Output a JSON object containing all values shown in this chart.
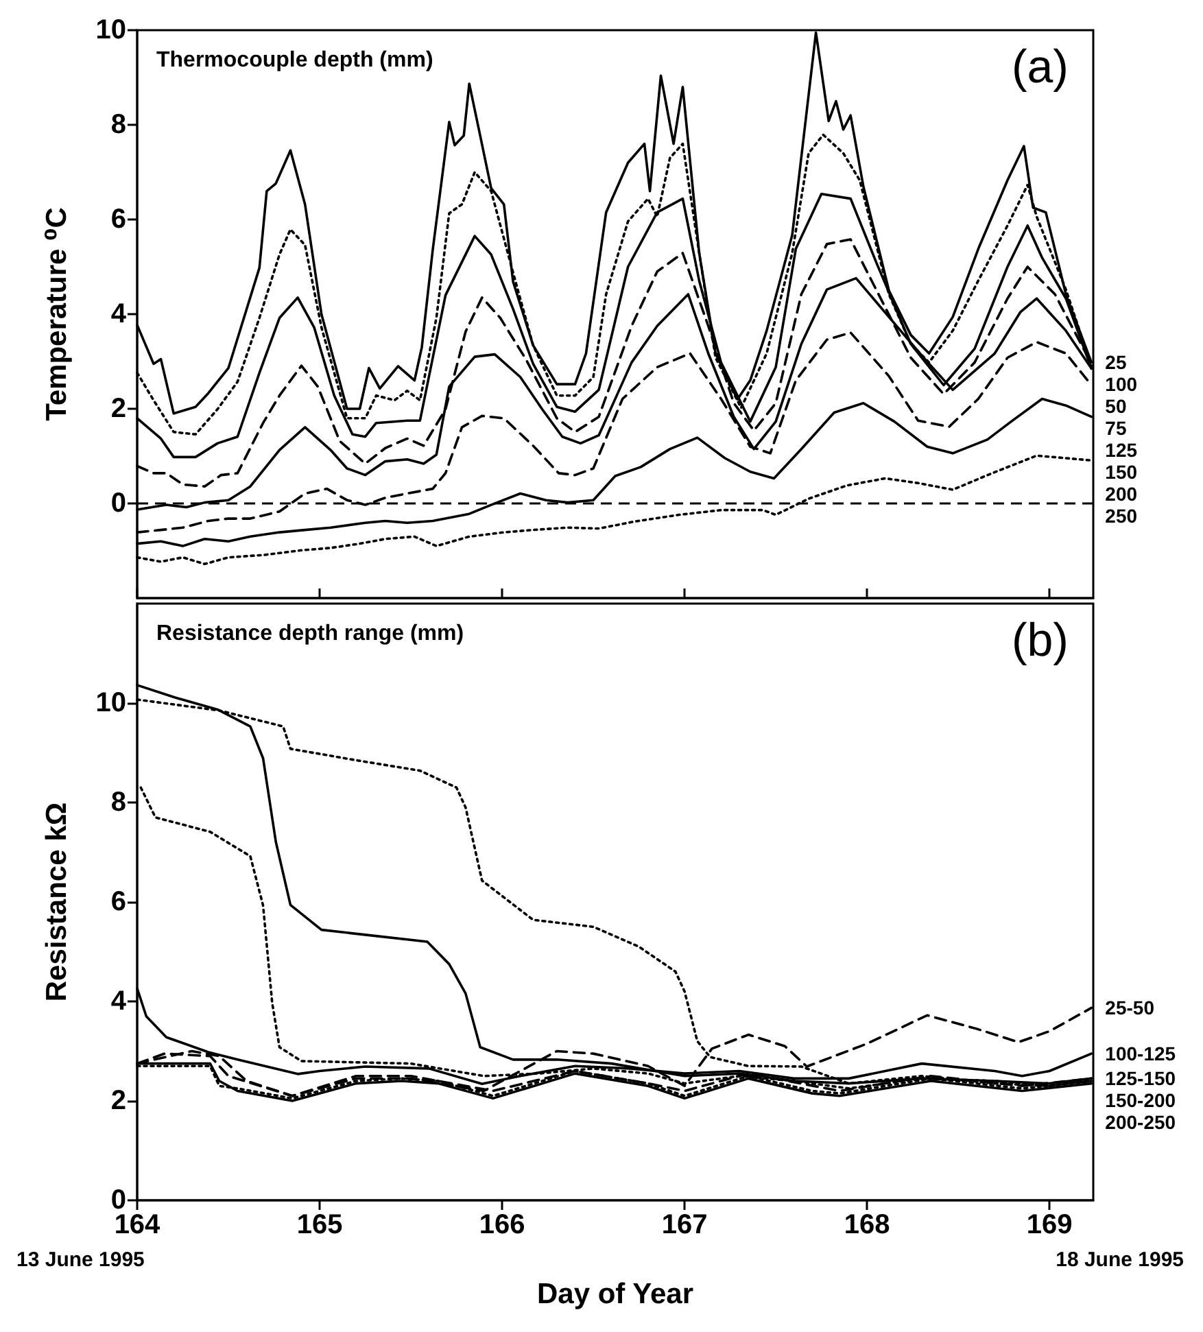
{
  "chart_data": [
    {
      "type": "line",
      "ylabel": "Temperature ⁰C",
      "xlim": [
        164,
        169.24
      ],
      "xticks": [
        164,
        165,
        166,
        167,
        168,
        169
      ],
      "ylim": [
        -2,
        10
      ],
      "yticks": [
        0,
        2,
        4,
        6,
        8,
        10
      ],
      "tick_labels": "y",
      "annotations": [
        "Thermocouple depth (mm)",
        "(a)"
      ],
      "ref_lines": [
        {
          "axis": "y",
          "value": 0,
          "color": "#000000",
          "line_style": "dashed"
        }
      ],
      "series": [
        {
          "name": "25",
          "color": "#000000",
          "line_style": "solid",
          "x": [
            164,
            164.09,
            164.13,
            164.2,
            164.32,
            164.39,
            164.5,
            164.67,
            164.71,
            164.76,
            164.84,
            164.92,
            165.01,
            165.15,
            165.22,
            165.27,
            165.33,
            165.43,
            165.52,
            165.56,
            165.62,
            165.71,
            165.74,
            165.79,
            165.82,
            165.88,
            165.94,
            166.01,
            166.06,
            166.17,
            166.3,
            166.4,
            166.46,
            166.57,
            166.69,
            166.78,
            166.81,
            166.87,
            166.94,
            166.99,
            167.08,
            167.17,
            167.29,
            167.36,
            167.45,
            167.59,
            167.72,
            167.79,
            167.83,
            167.87,
            167.91,
            167.98,
            168.12,
            168.24,
            168.34,
            168.47,
            168.61,
            168.77,
            168.86,
            168.91,
            168.98,
            169.09,
            169.23
          ],
          "values": [
            3.77,
            2.95,
            3.05,
            1.9,
            2.04,
            2.33,
            2.86,
            4.98,
            6.6,
            6.76,
            7.46,
            6.32,
            4.0,
            2.0,
            2.0,
            2.86,
            2.43,
            2.9,
            2.6,
            3.3,
            5.36,
            8.06,
            7.57,
            7.77,
            8.87,
            7.77,
            6.66,
            6.32,
            4.69,
            3.34,
            2.52,
            2.52,
            3.17,
            6.15,
            7.2,
            7.6,
            6.6,
            9.04,
            7.6,
            8.8,
            5.3,
            3.17,
            2.2,
            2.6,
            3.65,
            5.67,
            9.95,
            8.08,
            8.5,
            7.9,
            8.2,
            6.7,
            4.5,
            3.56,
            3.17,
            3.94,
            5.38,
            6.83,
            7.55,
            6.25,
            6.15,
            4.42,
            2.98
          ]
        },
        {
          "name": "50",
          "color": "#000000",
          "line_style": "dotted",
          "x": [
            164,
            164.09,
            164.2,
            164.32,
            164.44,
            164.55,
            164.67,
            164.78,
            164.84,
            164.92,
            165.01,
            165.15,
            165.25,
            165.31,
            165.41,
            165.48,
            165.55,
            165.64,
            165.71,
            165.78,
            165.85,
            165.94,
            166.06,
            166.17,
            166.3,
            166.4,
            166.5,
            166.57,
            166.69,
            166.8,
            166.85,
            166.92,
            166.99,
            167.08,
            167.17,
            167.31,
            167.45,
            167.59,
            167.68,
            167.76,
            167.87,
            167.96,
            168.12,
            168.24,
            168.34,
            168.47,
            168.61,
            168.77,
            168.88,
            168.93,
            169.09,
            169.23
          ],
          "values": [
            2.76,
            2.18,
            1.51,
            1.46,
            1.99,
            2.57,
            3.92,
            5.26,
            5.79,
            5.46,
            3.72,
            1.8,
            1.8,
            2.28,
            2.18,
            2.38,
            2.18,
            3.92,
            6.13,
            6.32,
            7.0,
            6.6,
            4.88,
            3.34,
            2.28,
            2.28,
            2.67,
            4.42,
            5.96,
            6.44,
            6.06,
            7.3,
            7.6,
            5.3,
            3.08,
            2.02,
            3.17,
            5.29,
            7.4,
            7.79,
            7.4,
            6.83,
            4.42,
            3.37,
            2.98,
            3.65,
            4.71,
            5.87,
            6.73,
            6.06,
            4.52,
            2.9
          ]
        },
        {
          "name": "75",
          "color": "#000000",
          "line_style": "solid",
          "x": [
            164,
            164.13,
            164.2,
            164.32,
            164.44,
            164.55,
            164.67,
            164.78,
            164.88,
            164.97,
            165.08,
            165.18,
            165.25,
            165.31,
            165.48,
            165.55,
            165.69,
            165.85,
            165.94,
            166.06,
            166.17,
            166.3,
            166.4,
            166.53,
            166.69,
            166.85,
            166.99,
            167.08,
            167.2,
            167.36,
            167.5,
            167.61,
            167.75,
            167.91,
            168.05,
            168.24,
            168.42,
            168.59,
            168.77,
            168.88,
            168.96,
            169.09,
            169.23
          ],
          "values": [
            1.8,
            1.37,
            0.98,
            0.98,
            1.27,
            1.41,
            2.76,
            3.92,
            4.35,
            3.72,
            2.28,
            1.46,
            1.41,
            1.7,
            1.75,
            1.75,
            4.4,
            5.65,
            5.26,
            4.11,
            2.95,
            2.04,
            1.94,
            2.4,
            5.0,
            6.15,
            6.44,
            4.71,
            2.98,
            1.73,
            2.88,
            5.38,
            6.54,
            6.44,
            5.1,
            3.37,
            2.5,
            3.27,
            5.0,
            5.87,
            5.19,
            4.33,
            2.85
          ]
        },
        {
          "name": "100",
          "color": "#000000",
          "line_style": "dashed",
          "x": [
            164,
            164.09,
            164.16,
            164.25,
            164.37,
            164.46,
            164.55,
            164.69,
            164.78,
            164.9,
            164.99,
            165.11,
            165.25,
            165.36,
            165.48,
            165.57,
            165.69,
            165.8,
            165.89,
            165.99,
            166.13,
            166.3,
            166.4,
            166.53,
            166.71,
            166.85,
            166.99,
            167.13,
            167.27,
            167.38,
            167.5,
            167.64,
            167.78,
            167.91,
            168.05,
            168.24,
            168.42,
            168.59,
            168.77,
            168.88,
            169.03,
            169.23
          ],
          "values": [
            0.79,
            0.64,
            0.64,
            0.4,
            0.36,
            0.6,
            0.64,
            1.7,
            2.28,
            2.91,
            2.47,
            1.32,
            0.84,
            1.17,
            1.37,
            1.22,
            1.99,
            3.63,
            4.35,
            3.92,
            3.05,
            1.8,
            1.51,
            1.83,
            3.75,
            4.9,
            5.29,
            3.75,
            2.12,
            1.54,
            2.12,
            4.42,
            5.48,
            5.58,
            4.52,
            3.08,
            2.31,
            2.98,
            4.33,
            5.0,
            4.42,
            2.95
          ]
        },
        {
          "name": "125",
          "color": "#000000",
          "line_style": "solid",
          "x": [
            164,
            164.16,
            164.27,
            164.37,
            164.5,
            164.62,
            164.78,
            164.92,
            165.06,
            165.15,
            165.25,
            165.36,
            165.48,
            165.57,
            165.64,
            165.71,
            165.85,
            165.96,
            166.1,
            166.22,
            166.33,
            166.43,
            166.53,
            166.71,
            166.85,
            167.02,
            167.13,
            167.27,
            167.38,
            167.5,
            167.64,
            167.78,
            167.94,
            168.12,
            168.31,
            168.47,
            168.7,
            168.84,
            168.93,
            169.09,
            169.23
          ],
          "values": [
            -0.13,
            -0.03,
            -0.08,
            0.02,
            0.07,
            0.36,
            1.13,
            1.61,
            1.13,
            0.74,
            0.6,
            0.89,
            0.93,
            0.84,
            1.03,
            2.47,
            3.1,
            3.15,
            2.67,
            1.99,
            1.41,
            1.27,
            1.44,
            2.98,
            3.75,
            4.42,
            3.17,
            1.83,
            1.15,
            1.73,
            3.37,
            4.52,
            4.76,
            3.94,
            3.08,
            2.4,
            3.17,
            4.04,
            4.33,
            3.65,
            2.85
          ]
        },
        {
          "name": "150",
          "color": "#000000",
          "line_style": "dashed",
          "x": [
            164,
            164.13,
            164.25,
            164.39,
            164.5,
            164.62,
            164.78,
            164.92,
            165.04,
            165.15,
            165.25,
            165.36,
            165.48,
            165.62,
            165.69,
            165.78,
            165.89,
            166.01,
            166.17,
            166.31,
            166.4,
            166.5,
            166.66,
            166.85,
            167.03,
            167.2,
            167.36,
            167.47,
            167.61,
            167.78,
            167.91,
            168.12,
            168.28,
            168.45,
            168.61,
            168.77,
            168.93,
            169.09,
            169.23
          ],
          "values": [
            -0.61,
            -0.56,
            -0.51,
            -0.37,
            -0.32,
            -0.32,
            -0.17,
            0.21,
            0.31,
            0.07,
            -0.03,
            0.12,
            0.21,
            0.31,
            0.64,
            1.61,
            1.85,
            1.8,
            1.22,
            0.64,
            0.6,
            0.74,
            2.21,
            2.88,
            3.17,
            2.21,
            1.2,
            1.06,
            2.6,
            3.46,
            3.61,
            2.69,
            1.75,
            1.62,
            2.21,
            3.08,
            3.41,
            3.17,
            2.5
          ]
        },
        {
          "name": "200",
          "color": "#000000",
          "line_style": "solid",
          "x": [
            164,
            164.13,
            164.25,
            164.37,
            164.5,
            164.62,
            164.78,
            164.92,
            165.06,
            165.25,
            165.36,
            165.48,
            165.62,
            165.82,
            165.94,
            166.1,
            166.24,
            166.36,
            166.5,
            166.62,
            166.76,
            166.92,
            167.07,
            167.22,
            167.36,
            167.49,
            167.64,
            167.82,
            167.98,
            168.15,
            168.33,
            168.47,
            168.66,
            168.79,
            168.96,
            169.09,
            169.23
          ],
          "values": [
            -0.85,
            -0.8,
            -0.9,
            -0.75,
            -0.8,
            -0.7,
            -0.61,
            -0.56,
            -0.51,
            -0.41,
            -0.37,
            -0.41,
            -0.37,
            -0.22,
            -0.03,
            0.21,
            0.07,
            0.02,
            0.07,
            0.58,
            0.77,
            1.15,
            1.39,
            0.96,
            0.67,
            0.53,
            1.15,
            1.92,
            2.12,
            1.73,
            1.2,
            1.06,
            1.35,
            1.73,
            2.21,
            2.07,
            1.83
          ]
        },
        {
          "name": "250",
          "color": "#000000",
          "line_style": "dotted",
          "x": [
            164,
            164.13,
            164.25,
            164.37,
            164.5,
            164.69,
            164.9,
            165.06,
            165.22,
            165.36,
            165.52,
            165.64,
            165.82,
            166.01,
            166.17,
            166.36,
            166.53,
            166.73,
            166.97,
            167.2,
            167.43,
            167.5,
            167.68,
            167.89,
            168.1,
            168.28,
            168.47,
            168.68,
            168.93,
            169.23
          ],
          "values": [
            -1.14,
            -1.23,
            -1.14,
            -1.28,
            -1.14,
            -1.09,
            -0.99,
            -0.94,
            -0.85,
            -0.75,
            -0.7,
            -0.9,
            -0.7,
            -0.61,
            -0.56,
            -0.51,
            -0.53,
            -0.38,
            -0.24,
            -0.14,
            -0.14,
            -0.24,
            0.1,
            0.38,
            0.53,
            0.43,
            0.29,
            0.63,
            1.01,
            0.91
          ]
        }
      ]
    },
    {
      "type": "line",
      "xlabel": "Day of Year",
      "ylabel": "Resistance kΩ",
      "xlim": [
        164,
        169.24
      ],
      "xticks": [
        164,
        165,
        166,
        167,
        168,
        169
      ],
      "ylim": [
        0,
        12
      ],
      "yticks": [
        0,
        2,
        4,
        6,
        8,
        10
      ],
      "annotations": [
        "Resistance depth range (mm)",
        "(b)",
        "13 June 1995",
        "18 June 1995"
      ],
      "series": [
        {
          "name": "100-125",
          "color": "#000000",
          "line_style": "solid",
          "x": [
            164,
            164.05,
            164.16,
            164.39,
            164.55,
            164.88,
            165.0,
            165.25,
            165.6,
            165.89,
            166.1,
            166.4,
            166.7,
            167.0,
            167.3,
            167.6,
            167.9,
            168.3,
            168.7,
            168.85,
            169.0,
            169.23
          ],
          "values": [
            4.26,
            3.7,
            3.28,
            2.98,
            2.83,
            2.54,
            2.6,
            2.69,
            2.65,
            2.34,
            2.5,
            2.7,
            2.65,
            2.55,
            2.6,
            2.45,
            2.45,
            2.75,
            2.6,
            2.5,
            2.6,
            2.95
          ]
        },
        {
          "name": "125-150",
          "color": "#000000",
          "line_style": "dotted",
          "x": [
            164.02,
            164.1,
            164.4,
            164.62,
            164.69,
            164.74,
            164.78,
            164.9,
            165.5,
            165.9,
            166.2,
            166.5,
            166.8,
            167.0,
            167.3,
            167.6,
            167.9,
            168.3,
            168.7,
            169.0,
            169.23
          ],
          "values": [
            8.3,
            7.7,
            7.41,
            6.92,
            5.93,
            3.97,
            3.08,
            2.8,
            2.75,
            2.5,
            2.55,
            2.65,
            2.55,
            2.35,
            2.5,
            2.4,
            2.25,
            2.45,
            2.4,
            2.3,
            2.45
          ]
        },
        {
          "name": "150-200",
          "color": "#000000",
          "line_style": "solid",
          "x": [
            164,
            164.2,
            164.44,
            164.62,
            164.69,
            164.76,
            164.84,
            165.01,
            165.25,
            165.59,
            165.71,
            165.8,
            165.88,
            166.06,
            166.3,
            166.6,
            167.0,
            167.3,
            167.6,
            167.9,
            168.3,
            168.7,
            169.0,
            169.23
          ],
          "values": [
            10.36,
            10.12,
            9.87,
            9.53,
            8.89,
            7.21,
            5.94,
            5.44,
            5.34,
            5.2,
            4.75,
            4.16,
            3.08,
            2.83,
            2.83,
            2.75,
            2.5,
            2.55,
            2.4,
            2.35,
            2.45,
            2.4,
            2.35,
            2.45
          ]
        },
        {
          "name": "200-250",
          "color": "#000000",
          "line_style": "dotted",
          "x": [
            164,
            164.45,
            164.8,
            164.84,
            165.2,
            165.55,
            165.75,
            165.8,
            165.89,
            166.17,
            166.5,
            166.75,
            166.95,
            167.0,
            167.07,
            167.14,
            167.35,
            167.64,
            167.9,
            168.3,
            168.7,
            169.0,
            169.23
          ],
          "values": [
            10.07,
            9.85,
            9.53,
            9.08,
            8.85,
            8.64,
            8.3,
            7.9,
            6.43,
            5.64,
            5.5,
            5.1,
            4.6,
            4.2,
            3.2,
            2.88,
            2.7,
            2.69,
            2.35,
            2.5,
            2.35,
            2.3,
            2.4
          ]
        },
        {
          "name": "25-50",
          "color": "#000000",
          "line_style": "dashed",
          "x": [
            164,
            164.15,
            164.4,
            164.5,
            164.85,
            165.2,
            165.5,
            165.9,
            166.3,
            166.5,
            166.8,
            167.0,
            167.15,
            167.35,
            167.55,
            167.67,
            168.0,
            168.33,
            168.6,
            168.83,
            169.0,
            169.23
          ],
          "values": [
            2.75,
            2.95,
            2.9,
            2.5,
            2.1,
            2.45,
            2.45,
            2.2,
            3.0,
            2.95,
            2.7,
            2.3,
            3.05,
            3.33,
            3.1,
            2.69,
            3.15,
            3.72,
            3.45,
            3.18,
            3.4,
            3.87
          ]
        },
        {
          "color": "#000000",
          "line_style": "solid",
          "x": [
            164,
            164.4,
            164.45,
            164.55,
            164.85,
            165.2,
            165.45,
            165.65,
            165.95,
            166.4,
            166.8,
            167.0,
            167.35,
            167.7,
            167.85,
            168.35,
            168.85,
            169.23
          ],
          "values": [
            2.75,
            2.75,
            2.4,
            2.2,
            2.0,
            2.35,
            2.4,
            2.35,
            2.05,
            2.55,
            2.3,
            2.05,
            2.45,
            2.15,
            2.1,
            2.4,
            2.2,
            2.35
          ]
        },
        {
          "color": "#000000",
          "line_style": "dotted",
          "x": [
            164,
            164.4,
            164.45,
            164.55,
            164.85,
            165.2,
            165.45,
            165.65,
            165.95,
            166.4,
            166.8,
            167.0,
            167.35,
            167.7,
            167.85,
            168.35,
            168.85,
            169.23
          ],
          "values": [
            2.7,
            2.7,
            2.3,
            2.25,
            2.05,
            2.4,
            2.45,
            2.4,
            2.1,
            2.6,
            2.35,
            2.1,
            2.5,
            2.2,
            2.15,
            2.45,
            2.25,
            2.4
          ]
        },
        {
          "color": "#000000",
          "line_style": "dashed",
          "x": [
            164,
            164.3,
            164.45,
            164.6,
            164.85,
            165.2,
            165.5,
            165.95,
            166.4,
            166.8,
            167.0,
            167.35,
            167.85,
            168.35,
            168.85,
            169.23
          ],
          "values": [
            2.75,
            3.0,
            2.9,
            2.4,
            2.1,
            2.5,
            2.5,
            2.2,
            2.6,
            2.35,
            2.2,
            2.55,
            2.2,
            2.5,
            2.3,
            2.45
          ]
        }
      ]
    }
  ]
}
